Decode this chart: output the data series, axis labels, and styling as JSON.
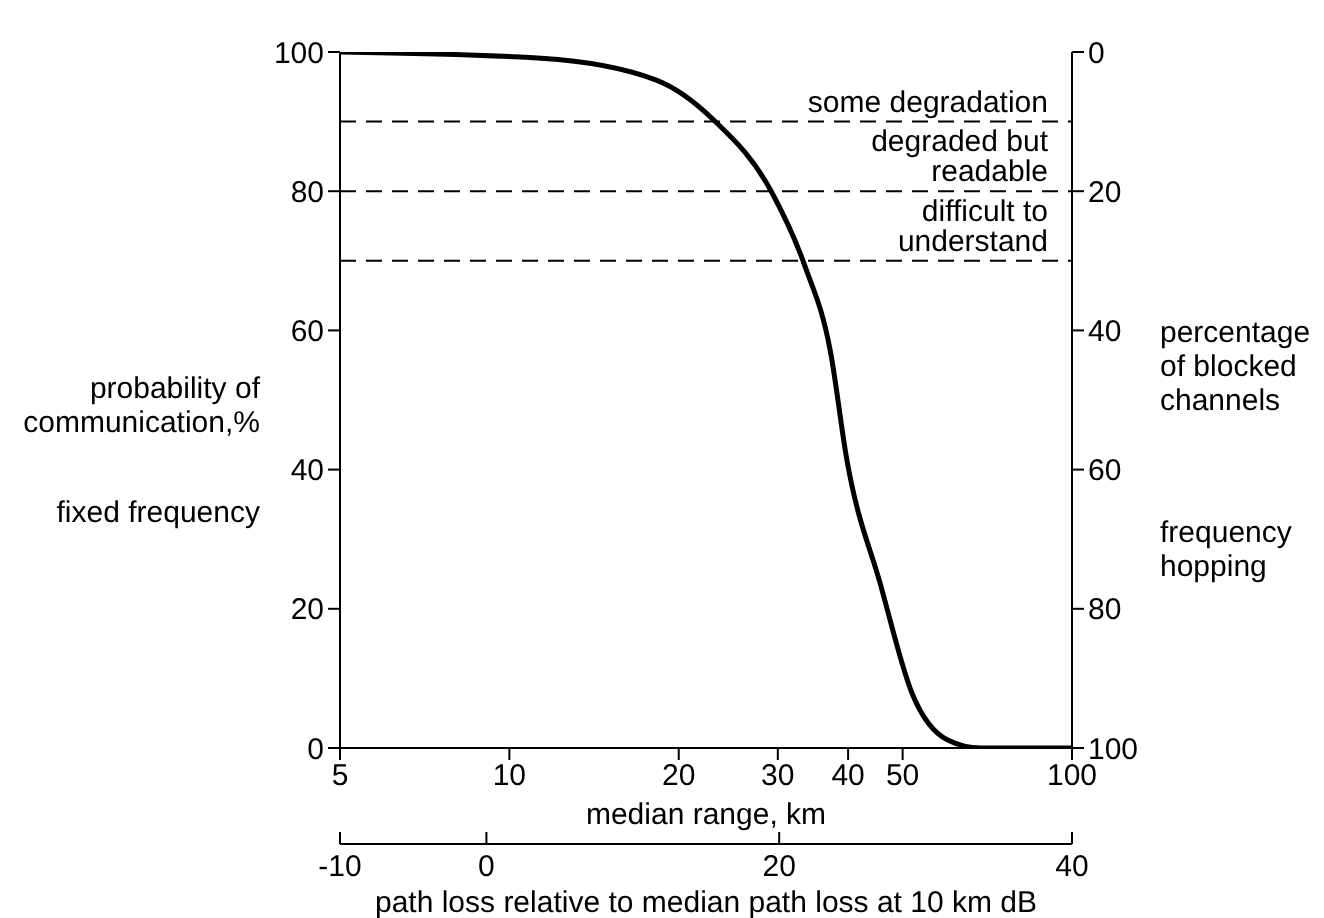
{
  "chart_data": {
    "type": "line",
    "xlabel": "median range, km",
    "x2label": "path loss relative to median path loss at 10 km dB",
    "ylabel": "probability of communication,%",
    "y2label": "percentage of blocked channels",
    "annotations": [
      "fixed frequency",
      "frequency hopping"
    ],
    "log": "x",
    "x": [
      5,
      11.4,
      18.2,
      23.1,
      29.2,
      33.5,
      37.2,
      39.8,
      45.7,
      52,
      60,
      68.8,
      100
    ],
    "series": [
      {
        "color": "#000000",
        "values": [
          100,
          99.1,
          96,
          90.2,
          80,
          69.3,
          57,
          41.4,
          23.4,
          7.8,
          1.2,
          0,
          0
        ]
      }
    ],
    "xlim": [
      5,
      100
    ],
    "xticks": [
      5,
      10,
      20,
      30,
      40,
      50,
      100
    ],
    "x2lim": [
      -10,
      40
    ],
    "x2ticks": [
      -10,
      0,
      20,
      40
    ],
    "ylim": [
      0,
      100
    ],
    "yticks": [
      0,
      20,
      40,
      60,
      80,
      100
    ],
    "y2lim": [
      100,
      0
    ],
    "y2ticks": [
      0,
      20,
      40,
      60,
      80,
      100
    ],
    "ref_lines": [
      {
        "axis": "y",
        "value": 90,
        "label": "some degradation",
        "line_style": "dashed"
      },
      {
        "axis": "y",
        "value": 80,
        "label": "degraded but readable",
        "line_style": "dashed"
      },
      {
        "axis": "y",
        "value": 70,
        "label": "difficult to understand",
        "line_style": "dashed"
      }
    ],
    "grid": false,
    "legend": false,
    "marker": "none",
    "line_style": "solid"
  }
}
